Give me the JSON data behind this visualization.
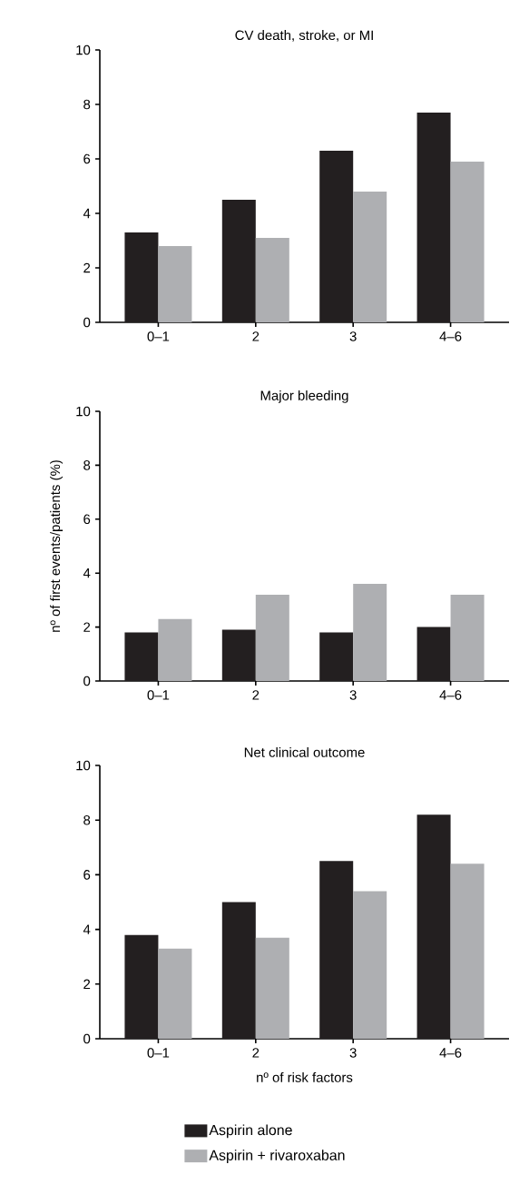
{
  "chart_data": [
    {
      "type": "bar",
      "title": "CV death, stroke, or MI",
      "categories": [
        "0–1",
        "2",
        "3",
        "4–6"
      ],
      "ylim": [
        0,
        10
      ],
      "yticks": [
        0,
        2,
        4,
        6,
        8,
        10
      ],
      "grid": false,
      "series": [
        {
          "color": "#231f20",
          "values": [
            3.3,
            4.5,
            6.3,
            7.7
          ]
        },
        {
          "color": "#aeafb2",
          "values": [
            2.8,
            3.1,
            4.8,
            5.9
          ]
        }
      ]
    },
    {
      "type": "bar",
      "title": "Major bleeding",
      "ylabel": "nº of first events/patients (%)",
      "categories": [
        "0–1",
        "2",
        "3",
        "4–6"
      ],
      "ylim": [
        0,
        10
      ],
      "yticks": [
        0,
        2,
        4,
        6,
        8,
        10
      ],
      "grid": false,
      "series": [
        {
          "color": "#231f20",
          "values": [
            1.8,
            1.9,
            1.8,
            2.0
          ]
        },
        {
          "color": "#aeafb2",
          "values": [
            2.3,
            3.2,
            3.6,
            3.2
          ]
        }
      ]
    },
    {
      "type": "bar",
      "title": "Net clinical outcome",
      "xlabel": "nº of risk factors",
      "categories": [
        "0–1",
        "2",
        "3",
        "4–6"
      ],
      "ylim": [
        0,
        10
      ],
      "yticks": [
        0,
        2,
        4,
        6,
        8,
        10
      ],
      "grid": false,
      "legend": "bottom",
      "series": [
        {
          "name": "Aspirin alone",
          "color": "#231f20",
          "values": [
            3.8,
            5.0,
            6.5,
            8.2
          ]
        },
        {
          "name": "Aspirin + rivaroxaban",
          "color": "#aeafb2",
          "values": [
            3.3,
            3.7,
            5.4,
            6.4
          ]
        }
      ]
    }
  ]
}
